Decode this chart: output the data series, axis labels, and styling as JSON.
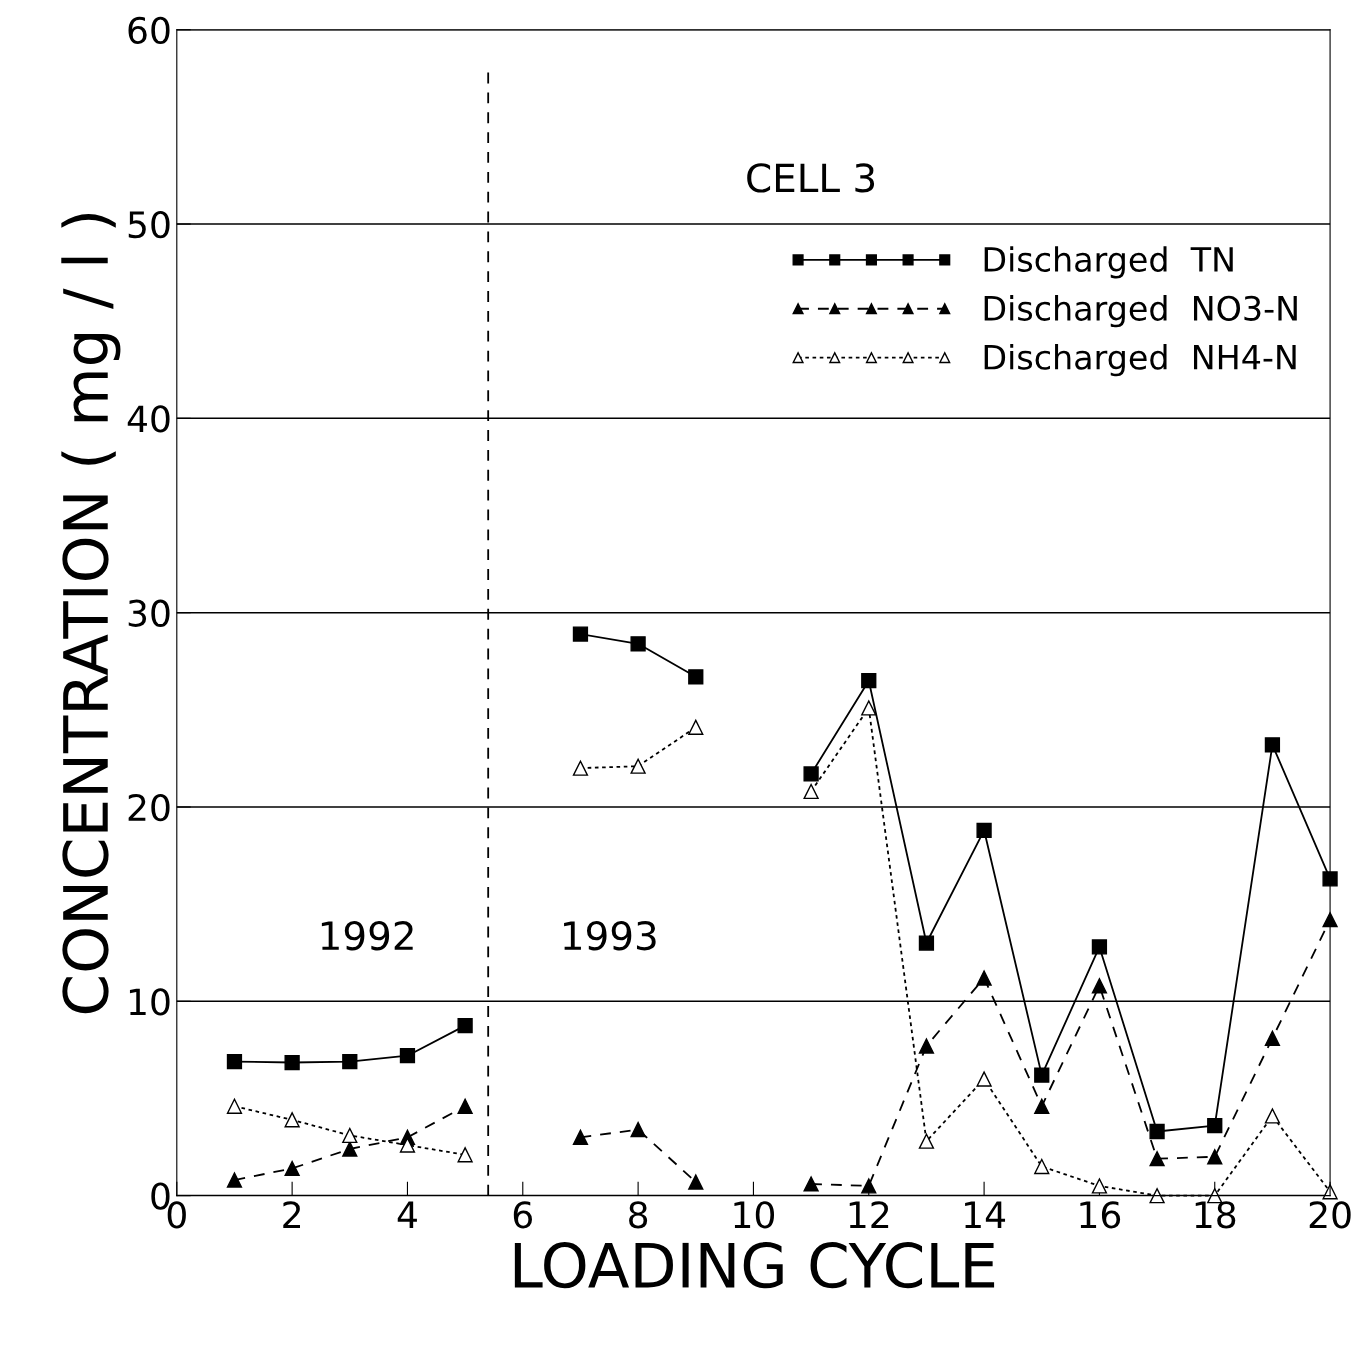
{
  "chart_data": {
    "type": "line",
    "xlabel": "LOADING CYCLE",
    "ylabel": "CONCENTRATION ( mg / l )",
    "x": [
      1,
      2,
      3,
      4,
      5,
      6,
      7,
      8,
      9,
      10,
      11,
      12,
      13,
      14,
      15,
      16,
      17,
      18,
      19,
      20
    ],
    "series": [
      {
        "name": "Discharged  TN",
        "color": "#000000",
        "marker": "square",
        "line_style": "solid",
        "values": [
          6.9,
          6.85,
          6.9,
          7.2,
          8.75,
          null,
          28.9,
          28.4,
          26.7,
          null,
          21.7,
          26.5,
          13.0,
          18.8,
          6.2,
          12.8,
          3.3,
          3.6,
          23.2,
          16.3
        ]
      },
      {
        "name": "Discharged  NO3-N",
        "color": "#000000",
        "marker": "triangle",
        "line_style": "dashed",
        "values": [
          0.8,
          1.4,
          2.4,
          3.0,
          4.6,
          null,
          3.0,
          3.4,
          0.7,
          null,
          0.6,
          0.5,
          7.7,
          11.2,
          4.6,
          10.8,
          1.9,
          2.0,
          8.1,
          14.2
        ]
      },
      {
        "name": "Discharged  NH4-N",
        "color": "#000000",
        "marker": "triangle",
        "line_style": "dotted",
        "values": [
          4.6,
          3.9,
          3.1,
          2.6,
          2.1,
          null,
          22.0,
          22.1,
          24.1,
          null,
          20.8,
          25.1,
          2.8,
          6.0,
          1.5,
          0.5,
          0,
          0,
          4.1,
          0.2
        ]
      }
    ],
    "xlim": [
      0,
      20
    ],
    "xticks": [
      0,
      2,
      4,
      6,
      8,
      10,
      12,
      14,
      16,
      18,
      20
    ],
    "ylim": [
      0,
      60
    ],
    "yticks": [
      0,
      10,
      20,
      30,
      40,
      50,
      60
    ],
    "grid": "y",
    "legend": "top right",
    "ref_lines": [
      {
        "axis": "x",
        "value": 5.4,
        "label": null,
        "line_style": "dashed",
        "color": "#000000"
      }
    ],
    "annotations": [
      "CELL 3",
      "1992",
      "1993"
    ]
  }
}
